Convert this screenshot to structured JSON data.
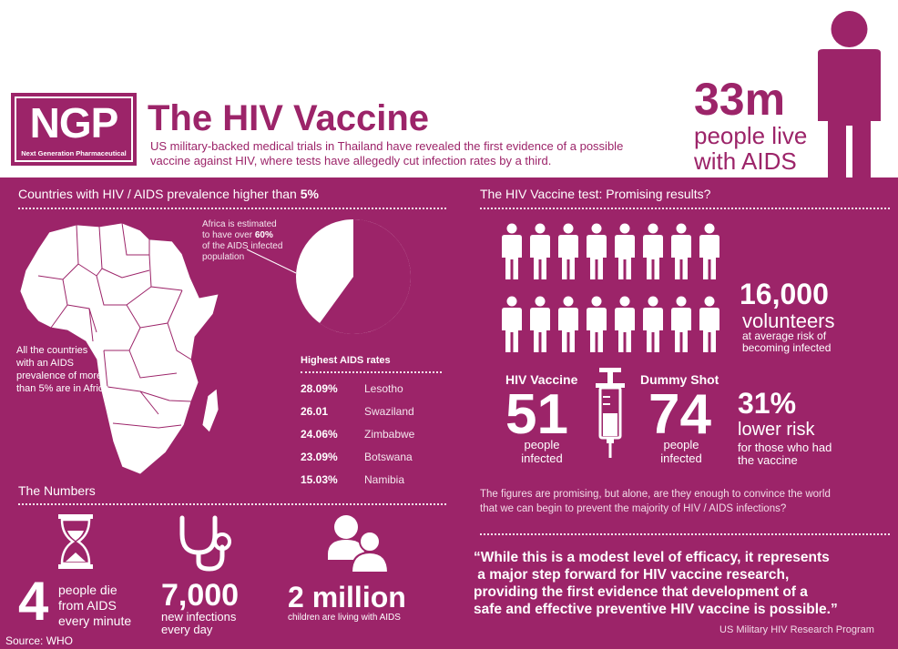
{
  "header": {
    "logo_text": "NGP",
    "logo_sub": "Next Generation Pharmaceutical",
    "title": "The HIV Vaccine",
    "intro_line1": "US military-backed medical trials in Thailand have revealed the first evidence of a possible",
    "intro_line2": "vaccine against HIV, where tests have allegedly cut infection rates by a third.",
    "stat_number": "33m",
    "stat_line1": "people live",
    "stat_line2": "with AIDS"
  },
  "left": {
    "section_title_prefix": "Countries with HIV / AIDS prevalence higher than",
    "section_title_value": "5%",
    "africa_note_1": "Africa is estimated",
    "africa_note_2_prefix": "to have over",
    "africa_note_2_value": "60%",
    "africa_note_3": "of the AIDS infected",
    "africa_note_4": "population",
    "africa_share_percent": 60,
    "map_note_1": "All the countries",
    "map_note_2": "with an AIDS",
    "map_note_3": "prevalence of more",
    "map_note_4": "than 5% are in Africa",
    "rates_title": "Highest AIDS rates",
    "rates": [
      {
        "value": "28.09%",
        "country": "Lesotho"
      },
      {
        "value": "26.01",
        "country": "Swaziland"
      },
      {
        "value": "24.06%",
        "country": "Zimbabwe"
      },
      {
        "value": "23.09%",
        "country": "Botswana"
      },
      {
        "value": "15.03%",
        "country": "Namibia"
      }
    ]
  },
  "numbers": {
    "title": "The Numbers",
    "deaths_value": "4",
    "deaths_line1": "people die",
    "deaths_line2": "from AIDS",
    "deaths_line3": "every minute",
    "infections_value": "7,000",
    "infections_line1": "new infections",
    "infections_line2": "every day",
    "children_value": "2 million",
    "children_line": "children are living with AIDS",
    "source": "Source: WHO"
  },
  "right": {
    "section_title": "The HIV Vaccine test: Promising results?",
    "volunteers_value": "16,000",
    "volunteers_line1": "volunteers",
    "volunteers_line2": "at average risk of",
    "volunteers_line3": "becoming infected",
    "vaccine_label": "HIV Vaccine",
    "vaccine_value": "51",
    "vaccine_line1": "people",
    "vaccine_line2": "infected",
    "dummy_label": "Dummy Shot",
    "dummy_value": "74",
    "dummy_line1": "people",
    "dummy_line2": "infected",
    "reduction_value": "31%",
    "reduction_line1": "lower risk",
    "reduction_line2": "for those who had",
    "reduction_line3": "the vaccine",
    "figures_line1": "The figures are promising, but alone,  are they enough to convince  the world",
    "figures_line2": "that we can begin to prevent the majority of HIV / AIDS infections?",
    "quote_line1": "“While this is a modest level of efficacy, it represents",
    "quote_line2": " a major step forward for HIV vaccine research,",
    "quote_line3": "providing the first evidence that development of a",
    "quote_line4": "safe and effective preventive HIV vaccine is possible.”",
    "quote_source": "US Military HIV Research Program"
  },
  "colors": {
    "primary": "#9c2469",
    "white": "#ffffff"
  },
  "icons": [
    "person-icon",
    "syringe-icon",
    "hourglass-icon",
    "stethoscope-icon",
    "children-icon",
    "africa-map-icon"
  ]
}
